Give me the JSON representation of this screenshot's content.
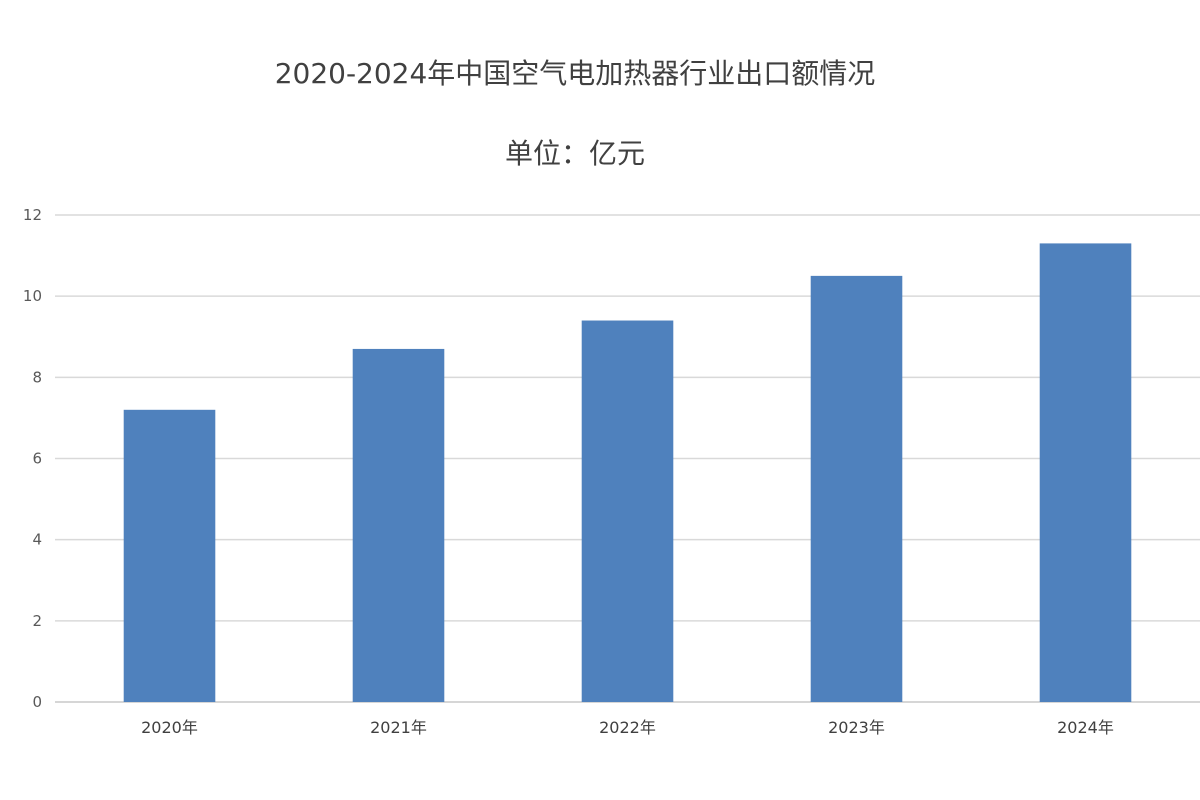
{
  "chart_data": {
    "type": "bar",
    "title": "2020-2024年中国空气电加热器行业出口额情况",
    "subtitle": "单位：亿元",
    "categories": [
      "2020年",
      "2021年",
      "2022年",
      "2023年",
      "2024年"
    ],
    "values": [
      7.2,
      8.7,
      9.4,
      10.5,
      11.3
    ],
    "ylim": [
      0,
      12
    ],
    "yticks": [
      0,
      2,
      4,
      6,
      8,
      10,
      12
    ],
    "grid": true,
    "bar_color": "#4f81bd",
    "xlabel": "",
    "ylabel": ""
  }
}
